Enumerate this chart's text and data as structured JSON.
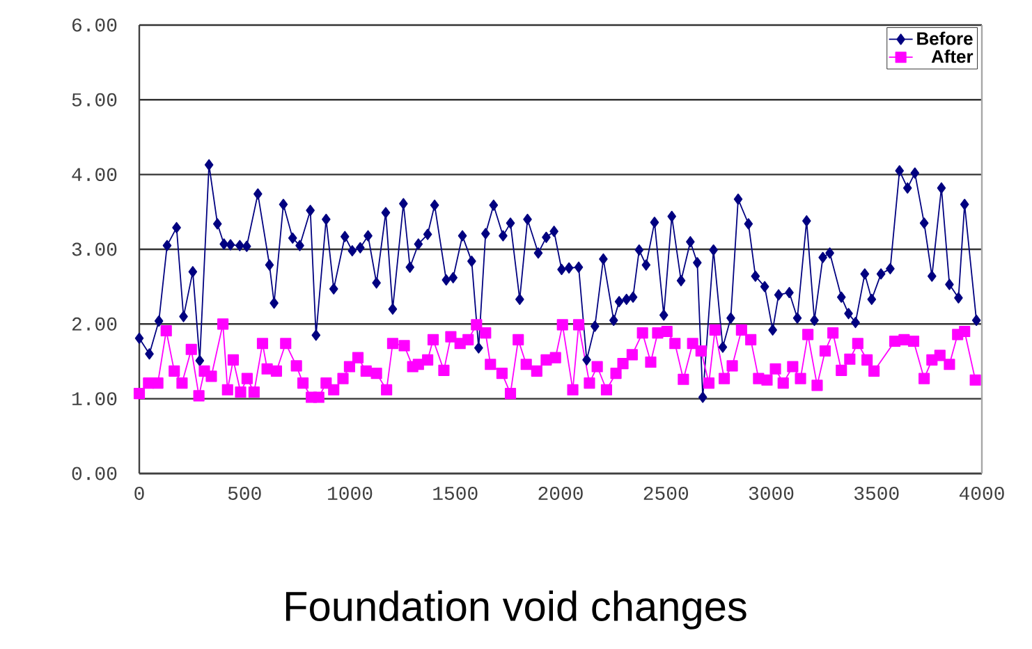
{
  "chart_data": {
    "type": "line",
    "title": "Foundation void changes",
    "xlim": [
      0,
      4000
    ],
    "xticks": [
      0,
      500,
      1000,
      1500,
      2000,
      2500,
      3000,
      3500,
      4000
    ],
    "ylim": [
      0,
      6
    ],
    "yticks": [
      {
        "value": 0,
        "label": "0.00"
      },
      {
        "value": 1,
        "label": "1.00"
      },
      {
        "value": 2,
        "label": "2.00"
      },
      {
        "value": 3,
        "label": "3.00"
      },
      {
        "value": 4,
        "label": "4.00"
      },
      {
        "value": 5,
        "label": "5.00"
      },
      {
        "value": 6,
        "label": "6.00"
      }
    ],
    "grid": "y",
    "legend": "top right",
    "line_style": "solid",
    "series": [
      {
        "name": "Before",
        "color": "#000080",
        "marker": "diamond",
        "x": [
          0,
          48,
          93,
          132,
          177,
          210,
          254,
          287,
          331,
          371,
          402,
          433,
          477,
          510,
          563,
          618,
          640,
          684,
          728,
          762,
          812,
          839,
          887,
          923,
          976,
          1011,
          1049,
          1086,
          1126,
          1170,
          1203,
          1254,
          1285,
          1325,
          1369,
          1402,
          1457,
          1490,
          1534,
          1578,
          1611,
          1644,
          1682,
          1727,
          1762,
          1806,
          1843,
          1894,
          1932,
          1969,
          2005,
          2040,
          2086,
          2124,
          2163,
          2203,
          2252,
          2278,
          2313,
          2344,
          2373,
          2406,
          2446,
          2490,
          2528,
          2572,
          2616,
          2649,
          2675,
          2726,
          2770,
          2808,
          2843,
          2892,
          2925,
          2969,
          3007,
          3035,
          3086,
          3124,
          3168,
          3205,
          3245,
          3278,
          3333,
          3367,
          3400,
          3444,
          3477,
          3521,
          3565,
          3609,
          3647,
          3682,
          3726,
          3763,
          3808,
          3846,
          3889,
          3918,
          3974
        ],
        "values": [
          1.81,
          1.6,
          2.04,
          3.05,
          3.29,
          2.1,
          2.7,
          1.51,
          4.13,
          3.34,
          3.07,
          3.06,
          3.05,
          3.04,
          3.74,
          2.79,
          2.28,
          3.6,
          3.15,
          3.05,
          3.52,
          1.85,
          3.4,
          2.47,
          3.17,
          2.98,
          3.02,
          3.18,
          2.55,
          3.49,
          2.2,
          3.61,
          2.76,
          3.07,
          3.2,
          3.59,
          2.59,
          2.62,
          3.18,
          2.84,
          1.68,
          3.21,
          3.59,
          3.18,
          3.35,
          2.33,
          3.4,
          2.95,
          3.16,
          3.24,
          2.73,
          2.75,
          2.76,
          1.52,
          1.97,
          2.87,
          2.05,
          2.3,
          2.33,
          2.36,
          2.99,
          2.79,
          3.36,
          2.12,
          3.44,
          2.58,
          3.1,
          2.82,
          1.02,
          2.99,
          1.69,
          2.08,
          3.67,
          3.34,
          2.64,
          2.5,
          1.92,
          2.39,
          2.42,
          2.08,
          3.38,
          2.05,
          2.89,
          2.95,
          2.36,
          2.14,
          2.02,
          2.67,
          2.33,
          2.67,
          2.74,
          4.05,
          3.82,
          4.02,
          3.35,
          2.64,
          3.82,
          2.53,
          2.35,
          3.6,
          2.05
        ]
      },
      {
        "name": "After",
        "color": "#ff00ff",
        "marker": "square",
        "x": [
          0,
          44,
          88,
          128,
          166,
          203,
          247,
          283,
          309,
          342,
          397,
          419,
          446,
          481,
          512,
          545,
          585,
          607,
          651,
          695,
          746,
          777,
          817,
          852,
          887,
          923,
          967,
          998,
          1038,
          1077,
          1126,
          1174,
          1203,
          1258,
          1298,
          1325,
          1369,
          1395,
          1446,
          1479,
          1523,
          1561,
          1601,
          1644,
          1667,
          1722,
          1762,
          1799,
          1837,
          1887,
          1932,
          1976,
          2009,
          2058,
          2086,
          2137,
          2174,
          2218,
          2263,
          2296,
          2340,
          2389,
          2428,
          2461,
          2505,
          2543,
          2583,
          2627,
          2667,
          2704,
          2733,
          2777,
          2815,
          2859,
          2903,
          2940,
          2980,
          3020,
          3057,
          3102,
          3139,
          3174,
          3218,
          3256,
          3293,
          3333,
          3373,
          3411,
          3455,
          3488,
          3587,
          3631,
          3676,
          3726,
          3763,
          3801,
          3846,
          3885,
          3918,
          3969
        ],
        "values": [
          1.07,
          1.21,
          1.21,
          1.91,
          1.37,
          1.21,
          1.66,
          1.04,
          1.37,
          1.3,
          2.0,
          1.12,
          1.52,
          1.09,
          1.27,
          1.09,
          1.74,
          1.4,
          1.37,
          1.74,
          1.44,
          1.21,
          1.02,
          1.02,
          1.21,
          1.12,
          1.27,
          1.43,
          1.55,
          1.37,
          1.34,
          1.12,
          1.74,
          1.71,
          1.43,
          1.46,
          1.52,
          1.79,
          1.38,
          1.83,
          1.74,
          1.79,
          1.99,
          1.88,
          1.46,
          1.34,
          1.07,
          1.79,
          1.46,
          1.37,
          1.52,
          1.55,
          1.99,
          1.12,
          1.99,
          1.21,
          1.43,
          1.12,
          1.34,
          1.47,
          1.59,
          1.88,
          1.49,
          1.88,
          1.9,
          1.74,
          1.26,
          1.74,
          1.64,
          1.21,
          1.92,
          1.27,
          1.44,
          1.92,
          1.79,
          1.27,
          1.25,
          1.4,
          1.21,
          1.43,
          1.27,
          1.86,
          1.18,
          1.64,
          1.88,
          1.38,
          1.53,
          1.74,
          1.52,
          1.37,
          1.77,
          1.79,
          1.77,
          1.27,
          1.52,
          1.58,
          1.46,
          1.86,
          1.9,
          1.25
        ]
      }
    ]
  }
}
